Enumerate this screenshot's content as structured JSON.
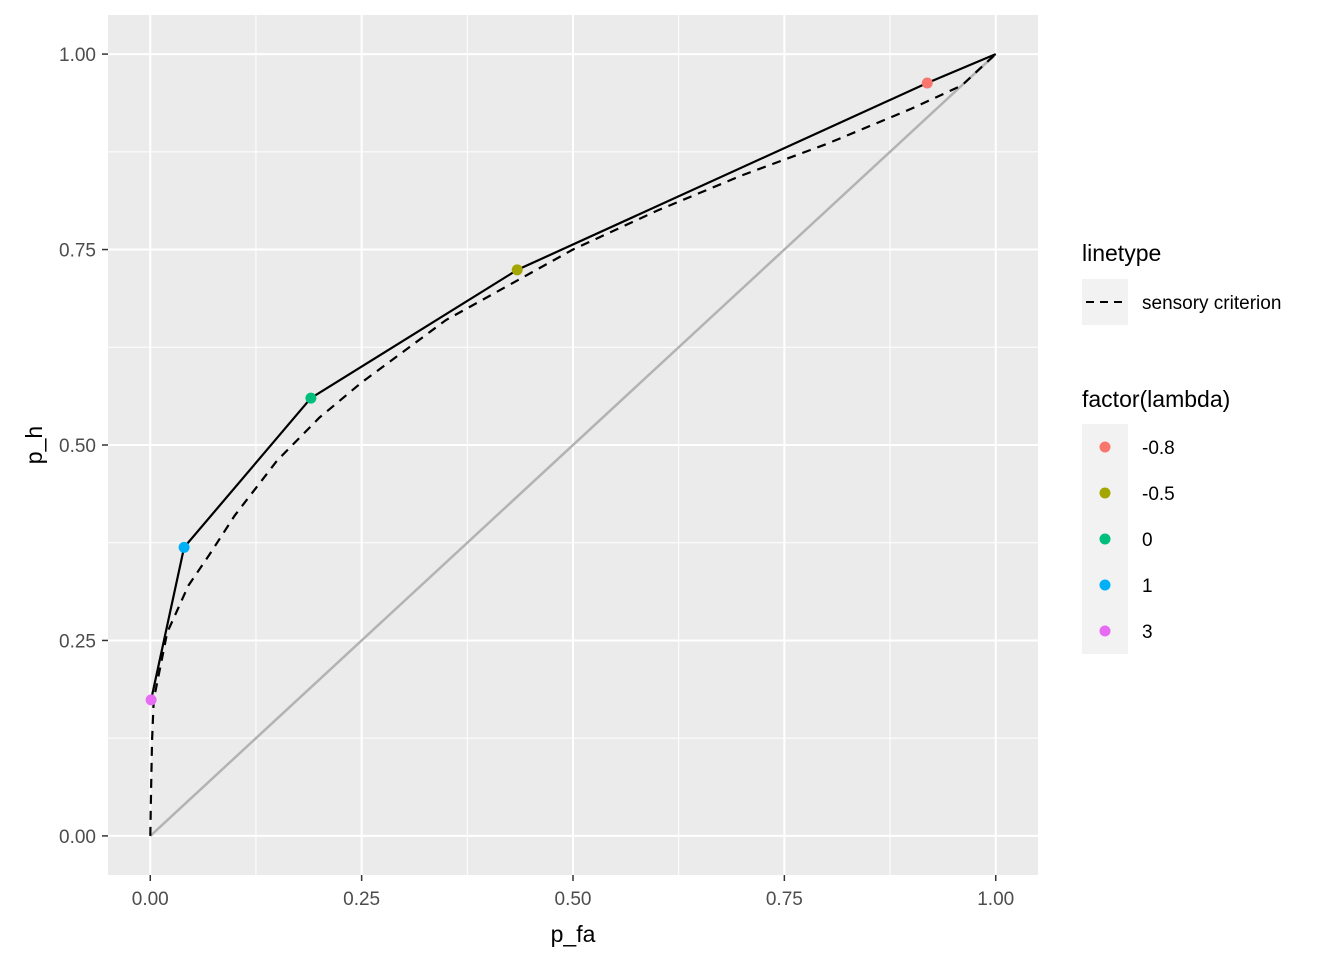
{
  "chart_data": {
    "type": "line",
    "xlabel": "p_fa",
    "ylabel": "p_h",
    "xlim": [
      -0.05,
      1.05
    ],
    "ylim": [
      -0.05,
      1.05
    ],
    "x_ticks": [
      "0.00",
      "0.25",
      "0.50",
      "0.75",
      "1.00"
    ],
    "y_ticks": [
      "0.00",
      "0.25",
      "0.50",
      "0.75",
      "1.00"
    ],
    "grid": true,
    "legend_position": "right",
    "linetype_legend": {
      "title": "linetype",
      "entries": [
        {
          "label": "sensory criterion",
          "style": "dashed"
        }
      ]
    },
    "color_legend": {
      "title": "factor(lambda)",
      "entries": [
        {
          "label": "-0.8",
          "color": "#F8766D"
        },
        {
          "label": "-0.5",
          "color": "#A3A500"
        },
        {
          "label": "0",
          "color": "#00BF7D"
        },
        {
          "label": "1",
          "color": "#00B0F6"
        },
        {
          "label": "3",
          "color": "#E76BF3"
        }
      ]
    },
    "points": [
      {
        "lambda": "-0.8",
        "x": 0.919,
        "y": 0.963,
        "color": "#F8766D"
      },
      {
        "lambda": "-0.5",
        "x": 0.434,
        "y": 0.724,
        "color": "#A3A500"
      },
      {
        "lambda": "0",
        "x": 0.19,
        "y": 0.56,
        "color": "#00BF7D"
      },
      {
        "lambda": "1",
        "x": 0.04,
        "y": 0.369,
        "color": "#00B0F6"
      },
      {
        "lambda": "3",
        "x": 0.001,
        "y": 0.174,
        "color": "#E76BF3"
      }
    ],
    "solid_line": [
      [
        0.001,
        0.174
      ],
      [
        0.04,
        0.369
      ],
      [
        0.19,
        0.56
      ],
      [
        0.434,
        0.724
      ],
      [
        0.919,
        0.963
      ],
      [
        1.0,
        1.0
      ]
    ],
    "dashed_line": [
      [
        0.0,
        0.0
      ],
      [
        0.001,
        0.06
      ],
      [
        0.002,
        0.12
      ],
      [
        0.004,
        0.174
      ],
      [
        0.02,
        0.26
      ],
      [
        0.045,
        0.32
      ],
      [
        0.07,
        0.36
      ],
      [
        0.1,
        0.41
      ],
      [
        0.15,
        0.48
      ],
      [
        0.2,
        0.535
      ],
      [
        0.25,
        0.58
      ],
      [
        0.3,
        0.62
      ],
      [
        0.35,
        0.66
      ],
      [
        0.4,
        0.69
      ],
      [
        0.45,
        0.72
      ],
      [
        0.5,
        0.75
      ],
      [
        0.6,
        0.8
      ],
      [
        0.7,
        0.845
      ],
      [
        0.8,
        0.885
      ],
      [
        0.9,
        0.93
      ],
      [
        0.96,
        0.96
      ],
      [
        0.985,
        0.985
      ],
      [
        1.0,
        1.0
      ]
    ],
    "reference_line": [
      [
        0.0,
        0.0
      ],
      [
        1.0,
        1.0
      ]
    ],
    "colors": {
      "panel_bg": "#EBEBEB",
      "grid": "#FFFFFF",
      "reference": "#B3B3B3",
      "line": "#000000",
      "legend_key_bg": "#F2F2F2"
    }
  }
}
